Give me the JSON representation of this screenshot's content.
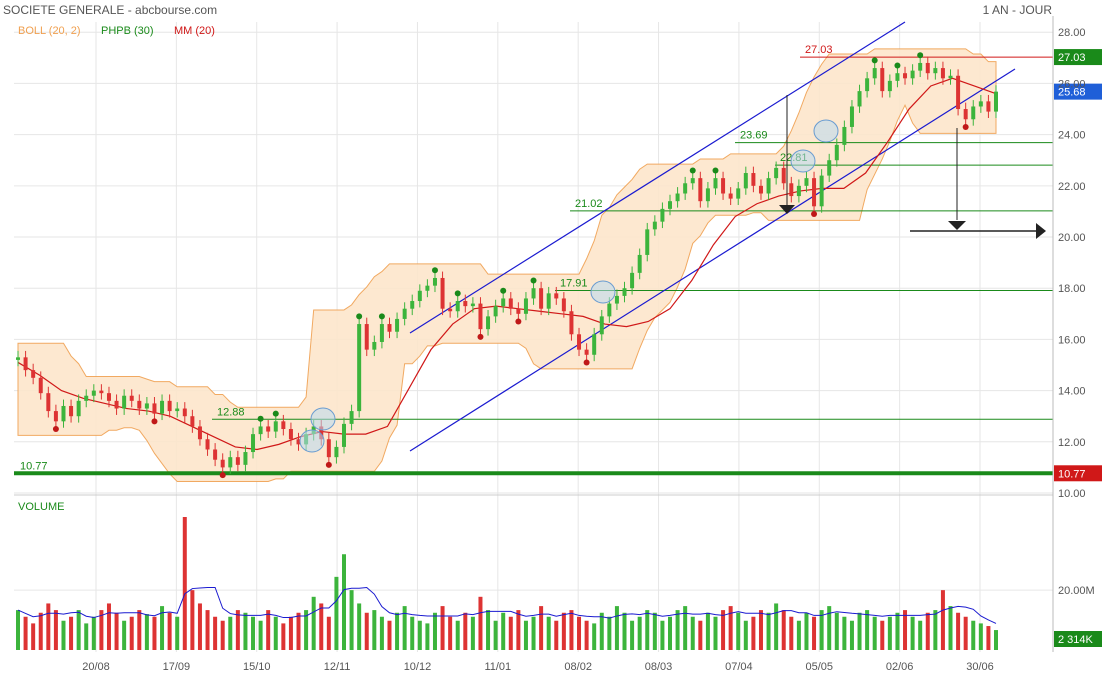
{
  "header": {
    "title": "SOCIETE GENERALE - abcbourse.com",
    "period": "1 AN - JOUR"
  },
  "legend": [
    {
      "label": "BOLL (20, 2)",
      "color": "#f0a050"
    },
    {
      "label": "PHPB (30)",
      "color": "#1a8a1a"
    },
    {
      "label": "MM (20)",
      "color": "#d01818"
    }
  ],
  "colors": {
    "up": "#3cb43c",
    "down": "#dd3333",
    "mm": "#d01818",
    "boll_fill": "#fde6cc",
    "boll_line": "#f0a050",
    "channel": "#1a1ad0",
    "level": "#1a8a1a",
    "volume_ma": "#1a1ad0",
    "grid": "#e6e6e6",
    "price_tag": "#1f5fd8"
  },
  "chart_data": [
    {
      "name": "price",
      "type": "candlestick",
      "y_ticks": [
        "28.00",
        "26.00",
        "24.00",
        "22.00",
        "20.00",
        "18.00",
        "16.00",
        "14.00",
        "12.00",
        "10.00"
      ],
      "ylim": [
        10,
        28.4
      ],
      "x_ticks": [
        "20/08",
        "17/09",
        "15/10",
        "12/11",
        "10/12",
        "11/01",
        "08/02",
        "08/03",
        "07/04",
        "05/05",
        "02/06",
        "30/06"
      ],
      "last_price": "25.68",
      "horizontal_levels": [
        {
          "value": 27.03,
          "label": "27.03",
          "color": "#d01818",
          "tag": "27.03",
          "tag_color": "#1a8a1a"
        },
        {
          "value": 23.69,
          "label": "23.69",
          "color": "#1a8a1a"
        },
        {
          "value": 22.81,
          "label": "22.81",
          "color": "#1a8a1a"
        },
        {
          "value": 21.02,
          "label": "21.02",
          "color": "#1a8a1a"
        },
        {
          "value": 17.91,
          "label": "17.91",
          "color": "#1a8a1a"
        },
        {
          "value": 12.88,
          "label": "12.88",
          "color": "#1a8a1a"
        },
        {
          "value": 10.77,
          "label": "10.77",
          "color": "#1a8a1a",
          "tag": "10.77",
          "tag_color": "#d01818"
        }
      ],
      "closes": [
        15.3,
        14.8,
        14.5,
        13.9,
        13.2,
        12.8,
        13.4,
        13.0,
        13.6,
        13.8,
        14.0,
        13.9,
        13.6,
        13.3,
        13.8,
        13.6,
        13.3,
        13.5,
        13.1,
        13.6,
        13.2,
        13.3,
        13.0,
        12.6,
        12.1,
        11.7,
        11.3,
        11.0,
        11.4,
        11.1,
        11.6,
        12.3,
        12.6,
        12.4,
        12.8,
        12.5,
        12.1,
        11.9,
        12.3,
        12.6,
        12.1,
        11.4,
        11.8,
        12.7,
        13.2,
        16.6,
        15.6,
        15.9,
        16.6,
        16.3,
        16.8,
        17.2,
        17.5,
        17.9,
        18.1,
        18.4,
        17.2,
        17.1,
        17.5,
        17.3,
        17.4,
        16.4,
        16.9,
        17.3,
        17.6,
        17.2,
        17.0,
        17.6,
        18.0,
        17.2,
        17.8,
        17.6,
        17.1,
        16.2,
        15.6,
        15.4,
        16.2,
        16.9,
        17.4,
        17.7,
        18.0,
        18.6,
        19.3,
        20.3,
        20.6,
        21.1,
        21.4,
        21.7,
        22.1,
        22.3,
        21.4,
        21.9,
        22.3,
        21.7,
        21.5,
        21.9,
        22.5,
        22.0,
        21.7,
        22.3,
        22.7,
        22.1,
        21.6,
        22.0,
        22.3,
        21.2,
        22.4,
        23.0,
        23.6,
        24.3,
        25.1,
        25.7,
        26.2,
        26.6,
        25.7,
        26.1,
        26.4,
        26.2,
        26.5,
        26.8,
        26.4,
        26.6,
        26.2,
        26.3,
        25.0,
        24.6,
        25.1,
        25.3,
        24.9,
        25.68
      ],
      "ma20_approx": [
        15.1,
        14.6,
        14.0,
        13.7,
        13.5,
        13.3,
        13.2,
        13.0,
        12.6,
        12.2,
        11.8,
        11.7,
        11.9,
        12.2,
        12.4,
        12.3,
        12.3,
        12.6,
        14.1,
        15.6,
        16.6,
        17.2,
        17.3,
        17.2,
        17.1,
        17.0,
        16.9,
        16.6,
        16.5,
        16.7,
        17.2,
        18.3,
        19.7,
        20.8,
        21.3,
        21.6,
        21.8,
        21.9,
        21.9,
        22.5,
        23.7,
        25.0,
        25.9,
        26.2,
        25.9,
        25.6
      ]
    },
    {
      "name": "volume",
      "type": "bar",
      "label": "VOLUME",
      "y_tick": "20.00M",
      "last_value": "2 314K",
      "spike_index": 22,
      "volumes_relative": [
        0.3,
        0.25,
        0.2,
        0.28,
        0.35,
        0.3,
        0.22,
        0.25,
        0.3,
        0.2,
        0.25,
        0.3,
        0.35,
        0.28,
        0.22,
        0.25,
        0.3,
        0.27,
        0.25,
        0.33,
        0.28,
        0.25,
        1.0,
        0.45,
        0.35,
        0.3,
        0.25,
        0.22,
        0.25,
        0.3,
        0.28,
        0.25,
        0.22,
        0.3,
        0.25,
        0.2,
        0.25,
        0.28,
        0.3,
        0.4,
        0.35,
        0.25,
        0.55,
        0.72,
        0.45,
        0.35,
        0.28,
        0.3,
        0.25,
        0.22,
        0.28,
        0.33,
        0.25,
        0.22,
        0.2,
        0.28,
        0.33,
        0.25,
        0.22,
        0.28,
        0.25,
        0.4,
        0.3,
        0.22,
        0.28,
        0.25,
        0.3,
        0.22,
        0.25,
        0.33,
        0.25,
        0.22,
        0.28,
        0.3,
        0.25,
        0.22,
        0.2,
        0.28,
        0.25,
        0.33,
        0.28,
        0.22,
        0.25,
        0.3,
        0.28,
        0.22,
        0.25,
        0.3,
        0.33,
        0.25,
        0.22,
        0.28,
        0.25,
        0.3,
        0.33,
        0.28,
        0.22,
        0.25,
        0.3,
        0.28,
        0.35,
        0.3,
        0.25,
        0.22,
        0.28,
        0.25,
        0.3,
        0.33,
        0.28,
        0.25,
        0.22,
        0.28,
        0.3,
        0.25,
        0.22,
        0.25,
        0.28,
        0.3,
        0.25,
        0.22,
        0.28,
        0.3,
        0.45,
        0.33,
        0.28,
        0.25,
        0.22,
        0.2,
        0.18,
        0.15
      ]
    }
  ]
}
